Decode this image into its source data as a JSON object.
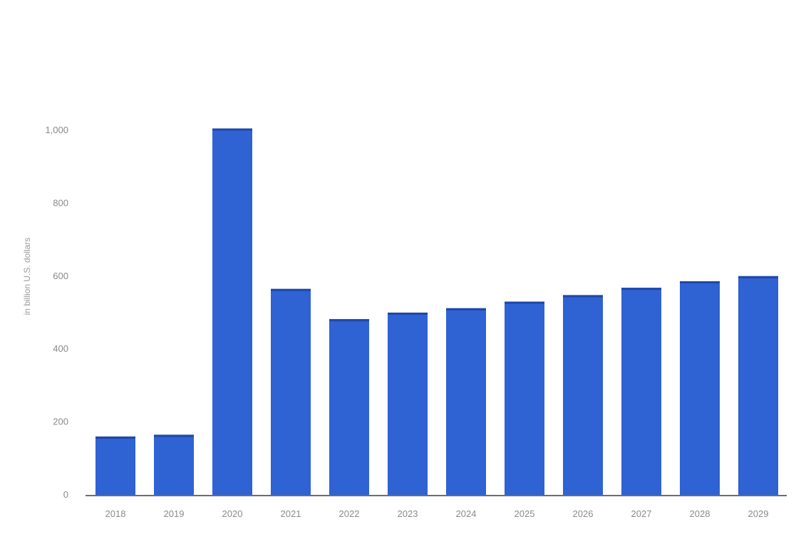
{
  "chart_data": {
    "type": "bar",
    "title": "",
    "xlabel": "",
    "ylabel": "in billion U.S. dollars",
    "categories": [
      "2018",
      "2019",
      "2020",
      "2021",
      "2022",
      "2023",
      "2024",
      "2025",
      "2026",
      "2027",
      "2028",
      "2029"
    ],
    "values": [
      160,
      165,
      1005,
      565,
      482,
      500,
      512,
      530,
      548,
      568,
      586,
      600
    ],
    "ylim": [
      0,
      1000
    ],
    "yticks": [
      0,
      200,
      400,
      600,
      800,
      1000
    ],
    "ytick_labels": [
      "0",
      "200",
      "400",
      "600",
      "800",
      "1,000"
    ],
    "grid": false,
    "legend": "none",
    "colors": {
      "bar": "#2f62d3",
      "bar_top": "#1f47a8",
      "baseline": "#6d6d6d",
      "tick_text": "#8a8a8a"
    }
  }
}
